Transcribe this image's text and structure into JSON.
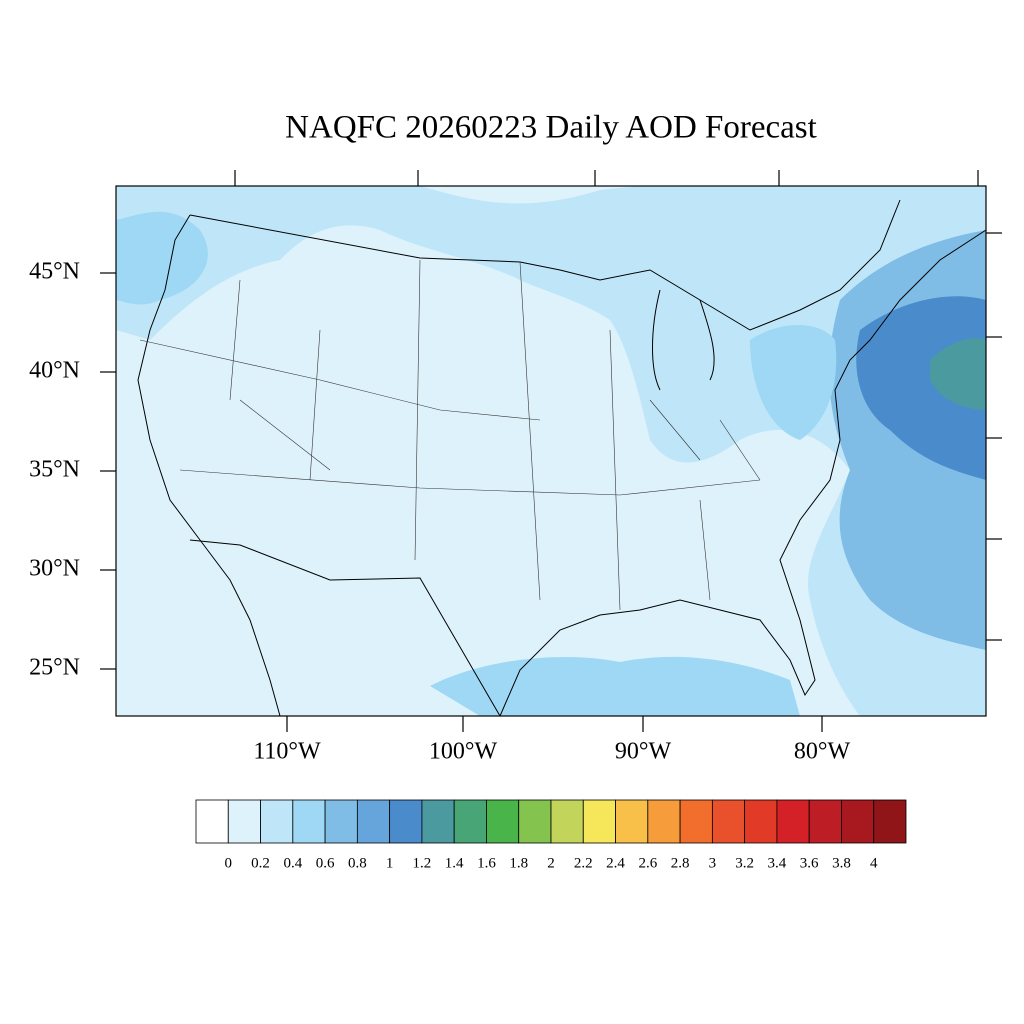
{
  "title": "NAQFC 20260223 Daily AOD Forecast",
  "map": {
    "lat_labels": [
      "45°N",
      "40°N",
      "35°N",
      "30°N",
      "25°N"
    ],
    "lon_labels": [
      "110°W",
      "100°W",
      "90°W",
      "80°W"
    ]
  },
  "colorbar": {
    "levels": [
      0,
      0.2,
      0.4,
      0.6,
      0.8,
      1,
      1.2,
      1.4,
      1.6,
      1.8,
      2,
      2.2,
      2.4,
      2.6,
      2.8,
      3,
      3.2,
      3.4,
      3.6,
      3.8,
      4
    ],
    "colors": [
      "#ffffff",
      "#def2fb",
      "#bfe6f8",
      "#9fd8f4",
      "#80bde6",
      "#65a5db",
      "#4a8ccb",
      "#4b9a9f",
      "#48a575",
      "#49b449",
      "#84c44e",
      "#c2d45a",
      "#f6e75a",
      "#f8c048",
      "#f79c3b",
      "#f26e2d",
      "#e8512b",
      "#e13b27",
      "#d42027",
      "#bd1d24",
      "#a8181f",
      "#8f1519"
    ]
  }
}
